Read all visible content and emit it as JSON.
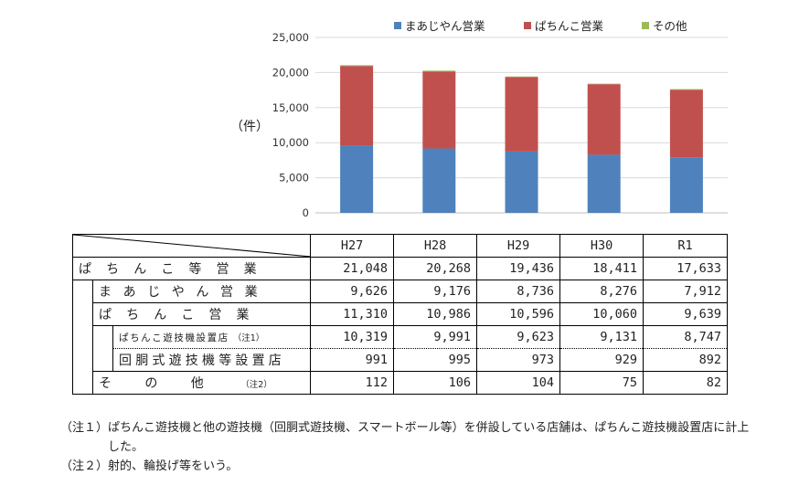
{
  "chart_data": {
    "type": "bar",
    "stacked": true,
    "categories": [
      "H27",
      "H28",
      "H29",
      "H30",
      "R1"
    ],
    "series": [
      {
        "name": "まあじやん営業",
        "color": "#4f81bd",
        "values": [
          9626,
          9176,
          8736,
          8276,
          7912
        ]
      },
      {
        "name": "ぱちんこ営業",
        "color": "#c0504d",
        "values": [
          11310,
          10986,
          10596,
          10060,
          9639
        ]
      },
      {
        "name": "その他",
        "color": "#9bbb59",
        "values": [
          112,
          106,
          104,
          75,
          82
        ]
      }
    ],
    "ylim": [
      0,
      25000
    ],
    "yticks": [
      "0",
      "5,000",
      "10,000",
      "15,000",
      "20,000",
      "25,000"
    ],
    "ytick_values": [
      0,
      5000,
      10000,
      15000,
      20000,
      25000
    ],
    "ylabel": "（件）",
    "grid": true,
    "legend_position": "top"
  },
  "table": {
    "years": [
      "H27",
      "H28",
      "H29",
      "H30",
      "R1"
    ],
    "rows": {
      "total": {
        "label": "ぱちんこ等営業",
        "values": [
          "21,048",
          "20,268",
          "19,436",
          "18,411",
          "17,633"
        ]
      },
      "mahjong": {
        "label": "まあじやん営業",
        "values": [
          "9,626",
          "9,176",
          "8,736",
          "8,276",
          "7,912"
        ]
      },
      "pachinko": {
        "label": "ぱちんこ営業",
        "values": [
          "11,310",
          "10,986",
          "10,596",
          "10,060",
          "9,639"
        ]
      },
      "pachinko_hall": {
        "label": "ぱちんこ遊技機設置店",
        "note": "（注1）",
        "values": [
          "10,319",
          "9,991",
          "9,623",
          "9,131",
          "8,747"
        ]
      },
      "rotary": {
        "label": "回胴式遊技機等設置店",
        "values": [
          "991",
          "995",
          "973",
          "929",
          "892"
        ]
      },
      "other": {
        "label": "その他",
        "note": "（注2）",
        "values": [
          "112",
          "106",
          "104",
          "75",
          "82"
        ]
      }
    }
  },
  "notes": [
    {
      "label": "（注１）",
      "text": "ぱちんこ遊技機と他の遊技機（回胴式遊技機、スマートボール等）を併設している店舗は、ぱちんこ遊技機設置店に計上した。"
    },
    {
      "label": "（注２）",
      "text": "射的、輪投げ等をいう。"
    }
  ]
}
